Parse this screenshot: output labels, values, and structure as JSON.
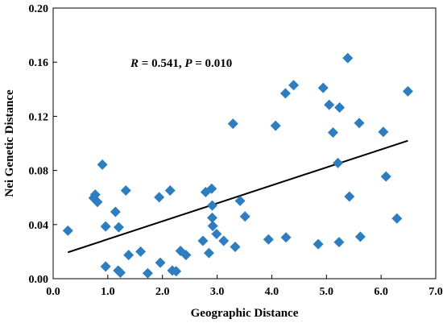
{
  "chart_data": {
    "type": "scatter",
    "xlabel": "Geographic Distance",
    "ylabel": "Nei Genetic Distance",
    "xlim": [
      0.0,
      7.0
    ],
    "ylim": [
      0.0,
      0.2
    ],
    "x_ticks": [
      "0.0",
      "1.0",
      "2.0",
      "3.0",
      "4.0",
      "5.0",
      "6.0",
      "7.0"
    ],
    "y_ticks": [
      "0.00",
      "0.04",
      "0.08",
      "0.12",
      "0.16",
      "0.20"
    ],
    "grid": false,
    "marker": "diamond",
    "marker_color": "#2e7dbf",
    "annotation": {
      "r_symbol": "R",
      "r_text": " = 0.541, ",
      "p_symbol": "P",
      "p_text": " = 0.010"
    },
    "trendline": {
      "x": [
        0.27,
        6.49
      ],
      "y": [
        0.0195,
        0.102
      ]
    },
    "points": [
      [
        0.27,
        0.0355
      ],
      [
        0.74,
        0.0597
      ],
      [
        0.77,
        0.0621
      ],
      [
        0.81,
        0.0567
      ],
      [
        0.9,
        0.0843
      ],
      [
        0.96,
        0.0386
      ],
      [
        0.96,
        0.009
      ],
      [
        1.14,
        0.0494
      ],
      [
        1.19,
        0.006
      ],
      [
        1.2,
        0.038
      ],
      [
        1.23,
        0.0045
      ],
      [
        1.33,
        0.0652
      ],
      [
        1.38,
        0.0175
      ],
      [
        1.6,
        0.02
      ],
      [
        1.73,
        0.004
      ],
      [
        1.94,
        0.0602
      ],
      [
        1.96,
        0.0118
      ],
      [
        2.14,
        0.0652
      ],
      [
        2.18,
        0.006
      ],
      [
        2.25,
        0.0055
      ],
      [
        2.33,
        0.0205
      ],
      [
        2.43,
        0.0175
      ],
      [
        2.74,
        0.028
      ],
      [
        2.79,
        0.064
      ],
      [
        2.85,
        0.019
      ],
      [
        2.9,
        0.0665
      ],
      [
        2.91,
        0.0541
      ],
      [
        2.91,
        0.045
      ],
      [
        2.92,
        0.039
      ],
      [
        2.99,
        0.033
      ],
      [
        3.12,
        0.028
      ],
      [
        3.29,
        0.1145
      ],
      [
        3.33,
        0.0235
      ],
      [
        3.42,
        0.0575
      ],
      [
        3.51,
        0.046
      ],
      [
        3.94,
        0.029
      ],
      [
        4.07,
        0.113
      ],
      [
        4.25,
        0.137
      ],
      [
        4.26,
        0.0305
      ],
      [
        4.4,
        0.143
      ],
      [
        4.85,
        0.0255
      ],
      [
        4.94,
        0.141
      ],
      [
        5.05,
        0.1285
      ],
      [
        5.12,
        0.108
      ],
      [
        5.21,
        0.0855
      ],
      [
        5.23,
        0.027
      ],
      [
        5.24,
        0.1265
      ],
      [
        5.39,
        0.163
      ],
      [
        5.42,
        0.0607
      ],
      [
        5.6,
        0.115
      ],
      [
        5.62,
        0.031
      ],
      [
        6.04,
        0.1085
      ],
      [
        6.09,
        0.0755
      ],
      [
        6.29,
        0.0445
      ],
      [
        6.49,
        0.1385
      ]
    ]
  }
}
